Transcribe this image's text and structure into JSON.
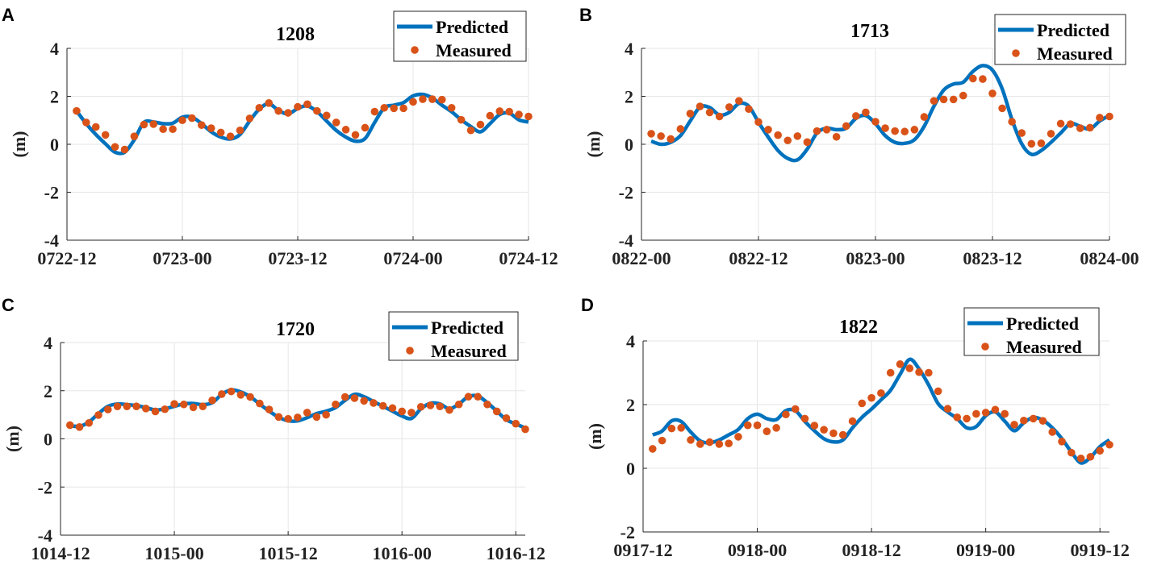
{
  "chart_data": [
    {
      "type": "line",
      "panel": "A",
      "title": "1208",
      "ylabel": "(m)",
      "xlabel": "",
      "ylim": [
        -4,
        4
      ],
      "yticks": [
        4,
        2,
        0,
        -2,
        -4
      ],
      "xlim_hours": [
        0,
        48
      ],
      "xtick_labels": [
        "0722-12",
        "0723-00",
        "0723-12",
        "0724-00",
        "0724-12"
      ],
      "xtick_hours": [
        0,
        12,
        24,
        36,
        48
      ],
      "grid": true,
      "legend": [
        "Predicted",
        "Measured"
      ],
      "legend_position": "top-right",
      "series": [
        {
          "name": "Predicted",
          "style": "line",
          "x": [
            1,
            2,
            3,
            4,
            5,
            6,
            7,
            8,
            9,
            10,
            11,
            12,
            13,
            14,
            15,
            16,
            17,
            18,
            19,
            20,
            21,
            22,
            23,
            24,
            25,
            26,
            27,
            28,
            29,
            30,
            31,
            32,
            33,
            34,
            35,
            36,
            37,
            38,
            39,
            40,
            41,
            42,
            43,
            44,
            45,
            46,
            47,
            48
          ],
          "y": [
            1.39,
            0.86,
            0.41,
            0.02,
            -0.33,
            -0.33,
            0.19,
            0.91,
            0.93,
            0.86,
            0.88,
            1.13,
            1.13,
            0.86,
            0.52,
            0.3,
            0.22,
            0.41,
            0.97,
            1.47,
            1.69,
            1.41,
            1.27,
            1.49,
            1.6,
            1.36,
            0.97,
            0.58,
            0.3,
            0.13,
            0.24,
            0.91,
            1.52,
            1.63,
            1.74,
            2.02,
            2.08,
            1.93,
            1.63,
            1.36,
            1.02,
            0.74,
            0.52,
            0.86,
            1.24,
            1.3,
            1.02,
            0.93
          ]
        },
        {
          "name": "Measured",
          "style": "dots",
          "x": [
            1,
            2,
            3,
            4,
            5,
            6,
            7,
            8,
            9,
            10,
            11,
            12,
            13,
            14,
            15,
            16,
            17,
            18,
            19,
            20,
            21,
            22,
            23,
            24,
            25,
            26,
            27,
            28,
            29,
            30,
            31,
            32,
            33,
            34,
            35,
            36,
            37,
            38,
            39,
            40,
            41,
            42,
            43,
            44,
            45,
            46,
            47,
            48
          ],
          "y": [
            1.39,
            0.91,
            0.72,
            0.39,
            -0.11,
            -0.22,
            0.33,
            0.82,
            0.84,
            0.63,
            0.63,
            1.0,
            1.09,
            0.8,
            0.67,
            0.49,
            0.33,
            0.58,
            1.08,
            1.52,
            1.72,
            1.39,
            1.31,
            1.56,
            1.67,
            1.39,
            1.2,
            0.91,
            0.61,
            0.39,
            0.69,
            1.36,
            1.52,
            1.5,
            1.5,
            1.77,
            1.88,
            1.88,
            1.86,
            1.52,
            1.02,
            0.58,
            0.82,
            1.19,
            1.38,
            1.36,
            1.24,
            1.16
          ]
        }
      ]
    },
    {
      "type": "line",
      "panel": "B",
      "title": "1713",
      "ylabel": "(m)",
      "xlabel": "",
      "ylim": [
        -4,
        4
      ],
      "yticks": [
        4,
        2,
        0,
        -2,
        -4
      ],
      "xlim_hours": [
        0,
        48
      ],
      "xtick_labels": [
        "0822-00",
        "0822-12",
        "0823-00",
        "0823-12",
        "0824-00"
      ],
      "xtick_hours": [
        0,
        12,
        24,
        36,
        48
      ],
      "grid": true,
      "legend": [
        "Predicted",
        "Measured"
      ],
      "legend_position": "top-right",
      "series": [
        {
          "name": "Predicted",
          "style": "line",
          "x": [
            1,
            2,
            3,
            4,
            5,
            6,
            7,
            8,
            9,
            10,
            11,
            12,
            13,
            14,
            15,
            16,
            17,
            18,
            19,
            20,
            21,
            22,
            23,
            24,
            25,
            26,
            27,
            28,
            29,
            30,
            31,
            32,
            33,
            34,
            35,
            36,
            37,
            38,
            39,
            40,
            41,
            42,
            43,
            44,
            45,
            46,
            47,
            48
          ],
          "y": [
            0.13,
            0.0,
            0.08,
            0.36,
            0.97,
            1.55,
            1.53,
            1.22,
            1.33,
            1.7,
            1.59,
            0.92,
            0.3,
            -0.26,
            -0.59,
            -0.65,
            -0.2,
            0.47,
            0.67,
            0.61,
            0.67,
            1.08,
            1.2,
            0.86,
            0.36,
            0.08,
            0.04,
            0.19,
            0.75,
            1.59,
            2.26,
            2.51,
            2.59,
            3.04,
            3.28,
            3.09,
            2.31,
            1.03,
            0.02,
            -0.42,
            -0.26,
            0.08,
            0.47,
            0.86,
            0.75,
            0.64,
            0.97,
            1.2
          ]
        },
        {
          "name": "Measured",
          "style": "dots",
          "x": [
            1,
            2,
            3,
            4,
            5,
            6,
            7,
            8,
            9,
            10,
            11,
            12,
            13,
            14,
            15,
            16,
            17,
            18,
            19,
            20,
            21,
            22,
            23,
            24,
            25,
            26,
            27,
            28,
            29,
            30,
            31,
            32,
            33,
            34,
            35,
            36,
            37,
            38,
            39,
            40,
            41,
            42,
            43,
            44,
            45,
            46,
            47,
            48
          ],
          "y": [
            0.44,
            0.34,
            0.22,
            0.64,
            1.28,
            1.58,
            1.33,
            1.16,
            1.55,
            1.81,
            1.47,
            0.93,
            0.61,
            0.38,
            0.16,
            0.34,
            0.09,
            0.55,
            0.61,
            0.31,
            0.76,
            1.18,
            1.33,
            0.94,
            0.67,
            0.55,
            0.53,
            0.61,
            1.14,
            1.81,
            1.87,
            1.87,
            2.03,
            2.74,
            2.72,
            2.12,
            1.5,
            0.94,
            0.47,
            0.02,
            0.04,
            0.44,
            0.86,
            0.84,
            0.67,
            0.69,
            1.11,
            1.16
          ]
        }
      ]
    },
    {
      "type": "line",
      "panel": "C",
      "title": "1720",
      "ylabel": "(m)",
      "xlabel": "",
      "ylim": [
        -4,
        4
      ],
      "yticks": [
        4,
        2,
        0,
        -2,
        -4
      ],
      "xlim_hours": [
        0,
        49
      ],
      "xtick_labels": [
        "1014-12",
        "1015-00",
        "1015-12",
        "1016-00",
        "1016-12"
      ],
      "xtick_hours": [
        0,
        12,
        24,
        36,
        48
      ],
      "grid": true,
      "legend": [
        "Predicted",
        "Measured"
      ],
      "legend_position": "top-right",
      "series": [
        {
          "name": "Predicted",
          "style": "line",
          "x": [
            1,
            2,
            3,
            4,
            5,
            6,
            7,
            8,
            9,
            10,
            11,
            12,
            13,
            14,
            15,
            16,
            17,
            18,
            19,
            20,
            21,
            22,
            23,
            24,
            25,
            26,
            27,
            28,
            29,
            30,
            31,
            32,
            33,
            34,
            35,
            36,
            37,
            38,
            39,
            40,
            41,
            42,
            43,
            44,
            45,
            46,
            47,
            48,
            49
          ],
          "y": [
            0.55,
            0.52,
            0.7,
            1.05,
            1.35,
            1.45,
            1.42,
            1.38,
            1.3,
            1.2,
            1.25,
            1.35,
            1.45,
            1.47,
            1.42,
            1.5,
            1.85,
            2.03,
            1.95,
            1.75,
            1.45,
            1.15,
            0.9,
            0.75,
            0.75,
            0.88,
            1.05,
            1.15,
            1.3,
            1.6,
            1.85,
            1.75,
            1.55,
            1.35,
            1.15,
            0.95,
            0.85,
            1.25,
            1.48,
            1.45,
            1.25,
            1.45,
            1.75,
            1.78,
            1.5,
            1.15,
            0.8,
            0.62,
            0.45
          ]
        },
        {
          "name": "Measured",
          "style": "dots",
          "x": [
            1,
            2,
            3,
            4,
            5,
            6,
            7,
            8,
            9,
            10,
            11,
            12,
            13,
            14,
            15,
            16,
            17,
            18,
            19,
            20,
            21,
            22,
            23,
            24,
            25,
            26,
            27,
            28,
            29,
            30,
            31,
            32,
            33,
            34,
            35,
            36,
            37,
            38,
            39,
            40,
            41,
            42,
            43,
            44,
            45,
            46,
            47,
            48,
            49
          ],
          "y": [
            0.57,
            0.49,
            0.66,
            0.99,
            1.22,
            1.35,
            1.35,
            1.35,
            1.26,
            1.14,
            1.23,
            1.45,
            1.43,
            1.31,
            1.35,
            1.6,
            1.86,
            1.97,
            1.83,
            1.74,
            1.47,
            1.22,
            0.91,
            0.83,
            0.89,
            1.09,
            0.91,
            1.0,
            1.43,
            1.74,
            1.69,
            1.58,
            1.49,
            1.37,
            1.28,
            1.14,
            1.09,
            1.33,
            1.39,
            1.35,
            1.2,
            1.43,
            1.75,
            1.75,
            1.43,
            1.14,
            0.86,
            0.63,
            0.4
          ]
        }
      ]
    },
    {
      "type": "line",
      "panel": "D",
      "title": "1822",
      "ylabel": "(m)",
      "xlabel": "",
      "ylim": [
        -2,
        4
      ],
      "yticks": [
        4,
        2,
        0,
        -2
      ],
      "xlim_hours": [
        0,
        49
      ],
      "xtick_labels": [
        "0917-12",
        "0918-00",
        "0918-12",
        "0919-00",
        "0919-12"
      ],
      "xtick_hours": [
        0,
        12,
        24,
        36,
        48
      ],
      "grid": true,
      "legend": [
        "Predicted",
        "Measured"
      ],
      "legend_position": "top-right",
      "series": [
        {
          "name": "Predicted",
          "style": "line",
          "x": [
            1,
            2,
            3,
            4,
            5,
            6,
            7,
            8,
            9,
            10,
            11,
            12,
            13,
            14,
            15,
            16,
            17,
            18,
            19,
            20,
            21,
            22,
            23,
            24,
            25,
            26,
            27,
            28,
            29,
            30,
            31,
            32,
            33,
            34,
            35,
            36,
            37,
            38,
            39,
            40,
            41,
            42,
            43,
            44,
            45,
            46,
            47,
            48,
            49
          ],
          "y": [
            1.05,
            1.17,
            1.49,
            1.47,
            1.14,
            0.86,
            0.8,
            0.89,
            1.05,
            1.22,
            1.56,
            1.7,
            1.56,
            1.53,
            1.81,
            1.81,
            1.47,
            1.18,
            0.93,
            0.83,
            0.89,
            1.27,
            1.6,
            1.86,
            2.15,
            2.45,
            2.95,
            3.42,
            3.12,
            2.62,
            2.03,
            1.77,
            1.56,
            1.27,
            1.31,
            1.65,
            1.77,
            1.48,
            1.18,
            1.43,
            1.6,
            1.51,
            1.27,
            0.93,
            0.51,
            0.17,
            0.34,
            0.68,
            0.89
          ]
        },
        {
          "name": "Measured",
          "style": "dots",
          "x": [
            1,
            2,
            3,
            4,
            5,
            6,
            7,
            8,
            9,
            10,
            11,
            12,
            13,
            14,
            15,
            16,
            17,
            18,
            19,
            20,
            21,
            22,
            23,
            24,
            25,
            26,
            27,
            28,
            29,
            30,
            31,
            32,
            33,
            34,
            35,
            36,
            37,
            38,
            39,
            40,
            41,
            42,
            43,
            44,
            45,
            46,
            47,
            48,
            49
          ],
          "y": [
            0.61,
            0.87,
            1.25,
            1.27,
            0.89,
            0.76,
            0.82,
            0.76,
            0.78,
            0.99,
            1.35,
            1.35,
            1.16,
            1.27,
            1.69,
            1.86,
            1.56,
            1.34,
            1.21,
            1.1,
            1.05,
            1.48,
            2.04,
            2.21,
            2.36,
            3.0,
            3.27,
            3.14,
            3.02,
            3.0,
            2.42,
            1.87,
            1.6,
            1.56,
            1.71,
            1.75,
            1.84,
            1.71,
            1.37,
            1.5,
            1.56,
            1.49,
            1.14,
            0.84,
            0.49,
            0.31,
            0.36,
            0.55,
            0.74
          ]
        }
      ]
    }
  ],
  "colors": {
    "predicted": "#0072BD",
    "measured": "#D95319",
    "grid": "#e6e6e6",
    "axis": "#262626"
  }
}
